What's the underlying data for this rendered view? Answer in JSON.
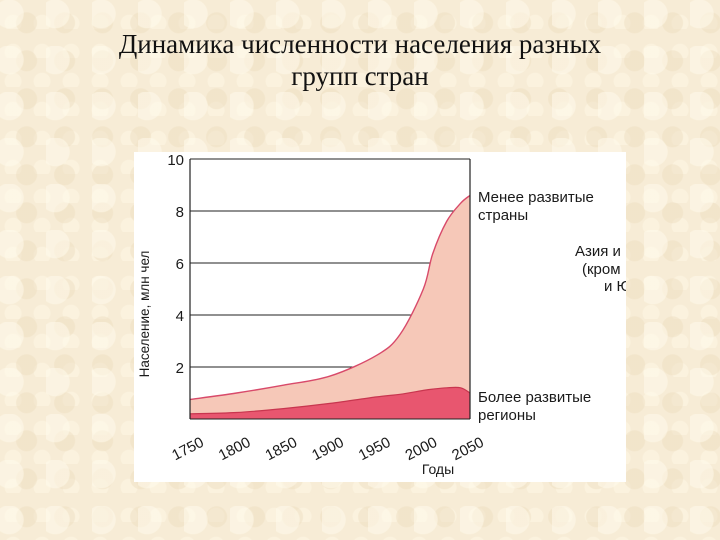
{
  "slide": {
    "title_line1": "Динамика численности населения разных",
    "title_line2": "групп стран"
  },
  "chart_data": {
    "type": "area",
    "stacked": true,
    "xlabel": "Годы",
    "ylabel": "Население, млн чел",
    "xlim": [
      1750,
      2050
    ],
    "ylim": [
      0,
      10
    ],
    "x_ticks": [
      1750,
      1800,
      1850,
      1900,
      1950,
      2000,
      2050
    ],
    "y_ticks": [
      2,
      4,
      6,
      8,
      10
    ],
    "x": [
      1750,
      1800,
      1850,
      1900,
      1950,
      1975,
      2000,
      2010,
      2025,
      2040,
      2050
    ],
    "series": [
      {
        "name": "Более развитые регионы",
        "color": "#e8566f",
        "values": [
          0.2,
          0.25,
          0.4,
          0.6,
          0.85,
          0.95,
          1.1,
          1.15,
          1.2,
          1.2,
          1.0
        ]
      },
      {
        "name": "Менее развитые страны",
        "color": "#f6c8b8",
        "values": [
          0.55,
          0.75,
          0.9,
          1.05,
          1.6,
          2.3,
          3.9,
          5.2,
          6.4,
          7.1,
          7.6
        ]
      }
    ],
    "labels": {
      "more_developed_1": "Более развитые",
      "more_developed_2": "регионы",
      "less_developed_1": "Менее развитые",
      "less_developed_2": "страны",
      "asia_1": "Азия и",
      "asia_2": "(кром",
      "asia_3": "и Ю"
    },
    "grid": true
  }
}
